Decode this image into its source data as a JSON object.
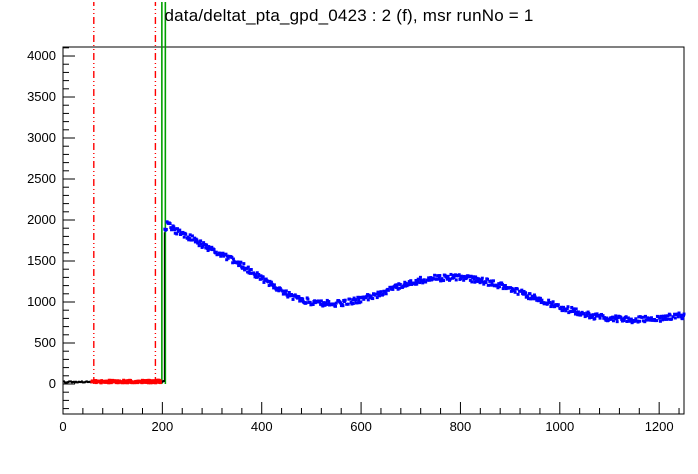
{
  "title": "data/deltat_pta_gpd_0423 : 2 (f), msr runNo = 1",
  "chart_data": {
    "type": "scatter",
    "title": "data/deltat_pta_gpd_0423 : 2 (f), msr runNo = 1",
    "xlabel": "",
    "ylabel": "",
    "xlim": [
      0,
      1250
    ],
    "ylim": [
      -366,
      4110
    ],
    "x_ticks": [
      0,
      200,
      400,
      600,
      800,
      1000,
      1200
    ],
    "y_ticks": [
      0,
      500,
      1000,
      1500,
      2000,
      2500,
      3000,
      3500,
      4000
    ],
    "x_minor_step": 40,
    "y_minor_step": 100,
    "grid": false,
    "legend": "none",
    "frame_color": "#000000",
    "vlines": [
      {
        "x": 62,
        "color": "#ff0000",
        "style": "dashdot",
        "width": 1.4
      },
      {
        "x": 186,
        "color": "#ff0000",
        "style": "dashdot",
        "width": 1.4
      },
      {
        "x": 199,
        "color": "#00a000",
        "style": "solid",
        "width": 1.6
      },
      {
        "x": 206,
        "color": "#00a000",
        "style": "solid",
        "width": 1.6
      }
    ],
    "vsegments": [
      {
        "x": 204,
        "y1": 30,
        "y2": 1850,
        "color": "#000000"
      }
    ],
    "series": [
      {
        "name": "pre-t0-black",
        "color": "#000000",
        "marker": 2,
        "step": 2,
        "noise": 7,
        "dense": false,
        "segments": [
          [
            [
              2,
              25
            ],
            [
              57,
              25
            ]
          ],
          [
            [
              197,
              30
            ],
            [
              203,
              30
            ]
          ]
        ]
      },
      {
        "name": "prompt-window-red",
        "color": "#ff0000",
        "marker": 3,
        "step": 2,
        "noise": 16,
        "dense": true,
        "segments": [
          [
            [
              58,
              30
            ],
            [
              196,
              30
            ]
          ]
        ]
      },
      {
        "name": "muon-signal-blue",
        "color": "#0000ff",
        "marker": 3,
        "step": 3,
        "noise": 38,
        "dense": true,
        "segments": [
          [
            [
              205,
              1870
            ],
            [
              210,
              1950
            ],
            [
              220,
              1900
            ],
            [
              235,
              1840
            ],
            [
              250,
              1800
            ],
            [
              265,
              1760
            ],
            [
              280,
              1700
            ],
            [
              300,
              1640
            ],
            [
              320,
              1580
            ],
            [
              340,
              1520
            ],
            [
              360,
              1450
            ],
            [
              380,
              1370
            ],
            [
              400,
              1290
            ],
            [
              420,
              1210
            ],
            [
              440,
              1130
            ],
            [
              460,
              1070
            ],
            [
              480,
              1030
            ],
            [
              500,
              1000
            ],
            [
              520,
              985
            ],
            [
              540,
              980
            ],
            [
              560,
              990
            ],
            [
              580,
              1005
            ],
            [
              600,
              1030
            ],
            [
              620,
              1065
            ],
            [
              640,
              1105
            ],
            [
              660,
              1150
            ],
            [
              680,
              1195
            ],
            [
              700,
              1235
            ],
            [
              720,
              1265
            ],
            [
              740,
              1285
            ],
            [
              760,
              1295
            ],
            [
              780,
              1300
            ],
            [
              800,
              1295
            ],
            [
              820,
              1285
            ],
            [
              840,
              1265
            ],
            [
              860,
              1235
            ],
            [
              880,
              1200
            ],
            [
              900,
              1160
            ],
            [
              920,
              1115
            ],
            [
              940,
              1070
            ],
            [
              960,
              1025
            ],
            [
              980,
              980
            ],
            [
              1000,
              940
            ],
            [
              1020,
              905
            ],
            [
              1040,
              870
            ],
            [
              1060,
              840
            ],
            [
              1080,
              815
            ],
            [
              1100,
              800
            ],
            [
              1120,
              790
            ],
            [
              1140,
              785
            ],
            [
              1160,
              785
            ],
            [
              1180,
              790
            ],
            [
              1200,
              800
            ],
            [
              1220,
              815
            ],
            [
              1250,
              835
            ]
          ]
        ]
      }
    ]
  }
}
